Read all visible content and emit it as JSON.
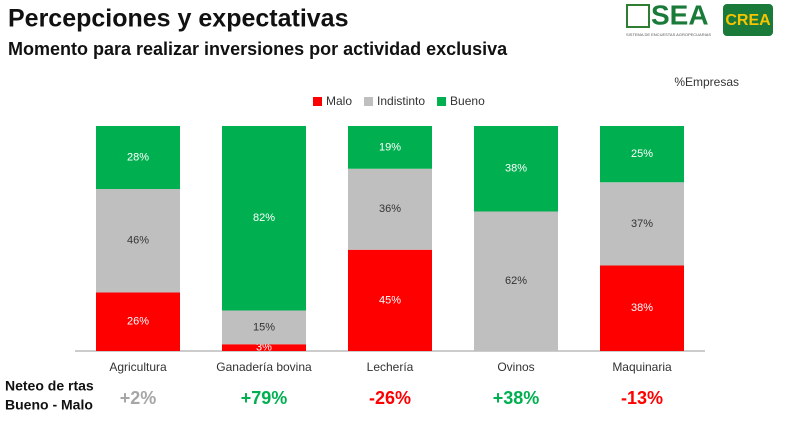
{
  "chart_data": {
    "type": "stacked_bar",
    "title": "Percepciones y expectativas",
    "subtitle": "Momento para realizar inversiones por actividad exclusiva",
    "unit_note": "%Empresas",
    "logos": {
      "sea": "SEA",
      "sea_caption": "SISTEMA DE ENCUESTAS AGROPECUARIAS",
      "crea": "CREA"
    },
    "categories": [
      "Agricultura",
      "Ganadería bovina",
      "Lechería",
      "Ovinos",
      "Maquinaria"
    ],
    "ylim": [
      0,
      100
    ],
    "legend": "top",
    "series": [
      {
        "name": "Malo",
        "color": "#ff0000",
        "label_color": "#ffffff",
        "values": [
          26,
          3,
          45,
          0,
          38
        ],
        "value_labels": [
          "26%",
          "3%",
          "45%",
          null,
          "38%"
        ]
      },
      {
        "name": "Indistinto",
        "color": "#bfbfbf",
        "label_color": "#333333",
        "values": [
          46,
          15,
          36,
          62,
          37
        ],
        "value_labels": [
          "46%",
          "15%",
          "36%",
          "62%",
          "37%"
        ]
      },
      {
        "name": "Bueno",
        "color": "#00b050",
        "label_color": "#ffffff",
        "values": [
          28,
          82,
          19,
          38,
          25
        ],
        "value_labels": [
          "28%",
          "82%",
          "19%",
          "38%",
          "25%"
        ]
      }
    ],
    "net": {
      "label_lines": [
        "Neteo de rtas",
        "Bueno - Malo"
      ],
      "values": [
        2,
        79,
        -26,
        38,
        -13
      ],
      "value_labels": [
        "+2%",
        "+79%",
        "-26%",
        "+38%",
        "-13%"
      ],
      "colors": [
        "#a6a6a6",
        "#00b050",
        "#ff0000",
        "#00b050",
        "#ff0000"
      ]
    }
  }
}
